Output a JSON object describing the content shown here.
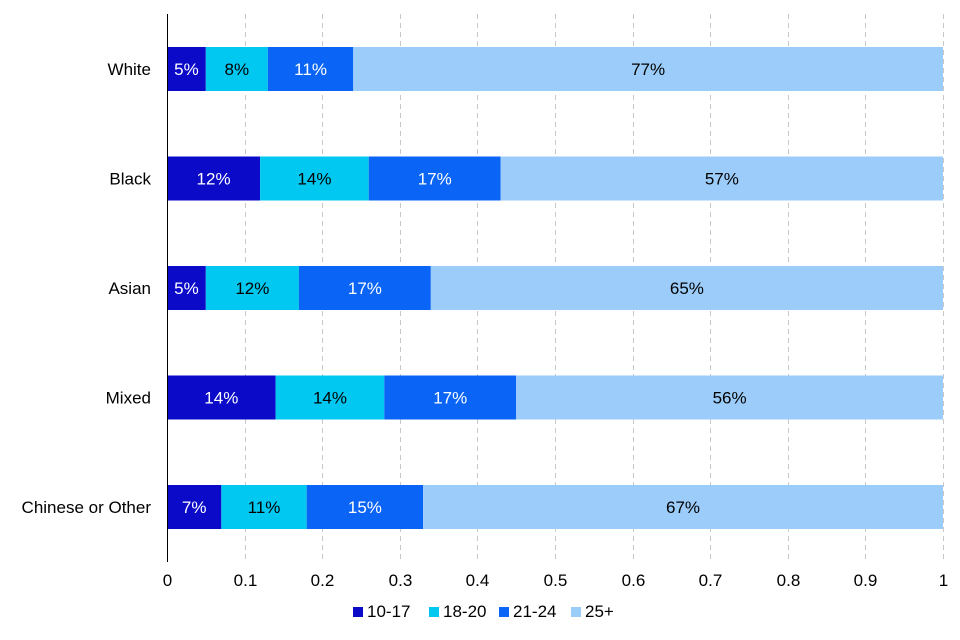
{
  "chart_data": {
    "type": "bar",
    "orientation": "horizontal",
    "stacked": true,
    "categories": [
      "White",
      "Black",
      "Asian",
      "Mixed",
      "Chinese or Other"
    ],
    "series": [
      {
        "name": "10-17",
        "color": "#0a0ac8",
        "label_color": "#ffffff",
        "values": [
          0.05,
          0.12,
          0.05,
          0.14,
          0.07
        ],
        "labels": [
          "5%",
          "12%",
          "5%",
          "14%",
          "7%"
        ]
      },
      {
        "name": "18-20",
        "color": "#00c8f0",
        "label_color": "#000000",
        "values": [
          0.08,
          0.14,
          0.12,
          0.14,
          0.11
        ],
        "labels": [
          "8%",
          "14%",
          "12%",
          "14%",
          "11%"
        ]
      },
      {
        "name": "21-24",
        "color": "#0a64f5",
        "label_color": "#ffffff",
        "values": [
          0.11,
          0.17,
          0.17,
          0.17,
          0.15
        ],
        "labels": [
          "11%",
          "17%",
          "17%",
          "17%",
          "15%"
        ]
      },
      {
        "name": "25+",
        "color": "#9ccdfa",
        "label_color": "#000000",
        "values": [
          0.77,
          0.57,
          0.65,
          0.56,
          0.67
        ],
        "labels": [
          "77%",
          "57%",
          "65%",
          "56%",
          "67%"
        ]
      }
    ],
    "xlim": [
      0,
      1
    ],
    "xticks": [
      0,
      0.1,
      0.2,
      0.3,
      0.4,
      0.5,
      0.6,
      0.7,
      0.8,
      0.9,
      1
    ],
    "xtick_labels": [
      "0",
      "0.1",
      "0.2",
      "0.3",
      "0.4",
      "0.5",
      "0.6",
      "0.7",
      "0.8",
      "0.9",
      "1"
    ],
    "grid": "vertical-dashed",
    "legend_position": "bottom",
    "title": "",
    "xlabel": "",
    "ylabel": ""
  }
}
